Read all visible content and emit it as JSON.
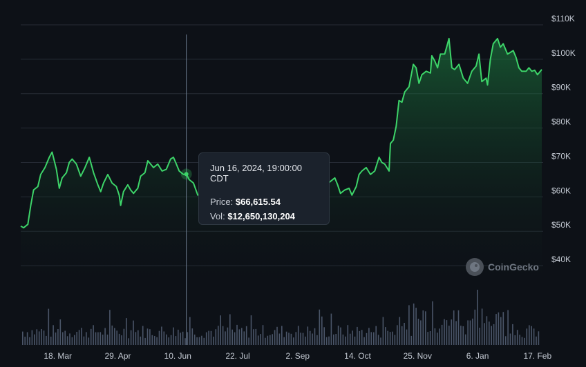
{
  "chart_data": {
    "type": "area",
    "y_unit_prefix": "$",
    "ylim": [
      35000,
      112000
    ],
    "yticks": [
      "$110K",
      "$100K",
      "$90K",
      "$80K",
      "$70K",
      "$60K",
      "$50K",
      "$40K"
    ],
    "ytick_values": [
      110000,
      100000,
      90000,
      80000,
      70000,
      60000,
      50000,
      40000
    ],
    "xticks": [
      "18. Mar",
      "29. Apr",
      "10. Jun",
      "22. Jul",
      "2. Sep",
      "14. Oct",
      "25. Nov",
      "6. Jan",
      "17. Feb"
    ],
    "xtick_dates": [
      "2024-03-18",
      "2024-04-29",
      "2024-06-10",
      "2024-07-22",
      "2024-09-02",
      "2024-10-14",
      "2024-11-25",
      "2025-01-06",
      "2025-02-17"
    ],
    "x_range": [
      "2024-02-21",
      "2025-02-20"
    ],
    "grid": true,
    "line_color": "#3dd469",
    "series": [
      {
        "values": [
          [
            "2024-02-21",
            51500
          ],
          [
            "2024-02-23",
            51000
          ],
          [
            "2024-02-26",
            52000
          ],
          [
            "2024-02-28",
            57500
          ],
          [
            "2024-03-01",
            62000
          ],
          [
            "2024-03-04",
            63000
          ],
          [
            "2024-03-06",
            66500
          ],
          [
            "2024-03-09",
            68500
          ],
          [
            "2024-03-12",
            71500
          ],
          [
            "2024-03-14",
            73000
          ],
          [
            "2024-03-17",
            68000
          ],
          [
            "2024-03-19",
            62500
          ],
          [
            "2024-03-21",
            65500
          ],
          [
            "2024-03-24",
            67000
          ],
          [
            "2024-03-26",
            70000
          ],
          [
            "2024-03-28",
            71000
          ],
          [
            "2024-03-31",
            69500
          ],
          [
            "2024-04-03",
            66000
          ],
          [
            "2024-04-06",
            68500
          ],
          [
            "2024-04-09",
            71500
          ],
          [
            "2024-04-12",
            67000
          ],
          [
            "2024-04-15",
            63500
          ],
          [
            "2024-04-17",
            61500
          ],
          [
            "2024-04-19",
            64000
          ],
          [
            "2024-04-22",
            66500
          ],
          [
            "2024-04-25",
            64000
          ],
          [
            "2024-04-28",
            63000
          ],
          [
            "2024-04-30",
            60500
          ],
          [
            "2024-05-01",
            57500
          ],
          [
            "2024-05-03",
            61500
          ],
          [
            "2024-05-06",
            63500
          ],
          [
            "2024-05-08",
            62000
          ],
          [
            "2024-05-10",
            61000
          ],
          [
            "2024-05-13",
            62500
          ],
          [
            "2024-05-15",
            66000
          ],
          [
            "2024-05-18",
            67000
          ],
          [
            "2024-05-20",
            70500
          ],
          [
            "2024-05-22",
            69500
          ],
          [
            "2024-05-24",
            68500
          ],
          [
            "2024-05-27",
            69500
          ],
          [
            "2024-05-30",
            67500
          ],
          [
            "2024-06-02",
            68000
          ],
          [
            "2024-06-05",
            71000
          ],
          [
            "2024-06-07",
            71500
          ],
          [
            "2024-06-09",
            69500
          ],
          [
            "2024-06-11",
            67500
          ],
          [
            "2024-06-14",
            66500
          ],
          [
            "2024-06-16",
            66615.54
          ],
          [
            "2024-06-18",
            65000
          ],
          [
            "2024-06-21",
            64000
          ],
          [
            "2024-06-24",
            60500
          ],
          [
            "2024-06-27",
            61500
          ],
          [
            "2024-06-30",
            62500
          ],
          [
            "2024-07-03",
            60000
          ],
          [
            "2024-07-05",
            56500
          ],
          [
            "2024-07-08",
            56000
          ],
          [
            "2024-07-11",
            57500
          ],
          [
            "2024-07-14",
            60500
          ],
          [
            "2024-07-17",
            65000
          ],
          [
            "2024-07-20",
            67000
          ],
          [
            "2024-07-23",
            65500
          ],
          [
            "2024-07-26",
            68000
          ],
          [
            "2024-07-29",
            66500
          ],
          [
            "2024-08-01",
            64500
          ],
          [
            "2024-08-03",
            61000
          ],
          [
            "2024-08-05",
            54000
          ],
          [
            "2024-08-08",
            61500
          ],
          [
            "2024-08-11",
            59000
          ],
          [
            "2024-08-14",
            58500
          ],
          [
            "2024-08-17",
            59500
          ],
          [
            "2024-08-20",
            61000
          ],
          [
            "2024-08-23",
            64000
          ],
          [
            "2024-08-26",
            63000
          ],
          [
            "2024-08-29",
            59500
          ],
          [
            "2024-09-01",
            57500
          ],
          [
            "2024-09-04",
            56500
          ],
          [
            "2024-09-06",
            54000
          ],
          [
            "2024-09-08",
            54500
          ],
          [
            "2024-09-11",
            57500
          ],
          [
            "2024-09-14",
            60000
          ],
          [
            "2024-09-17",
            58500
          ],
          [
            "2024-09-19",
            62500
          ],
          [
            "2024-09-22",
            63500
          ],
          [
            "2024-09-25",
            64500
          ],
          [
            "2024-09-28",
            65500
          ],
          [
            "2024-09-30",
            63500
          ],
          [
            "2024-10-02",
            61000
          ],
          [
            "2024-10-05",
            62000
          ],
          [
            "2024-10-08",
            62500
          ],
          [
            "2024-10-10",
            60500
          ],
          [
            "2024-10-13",
            63000
          ],
          [
            "2024-10-15",
            66500
          ],
          [
            "2024-10-17",
            67500
          ],
          [
            "2024-10-20",
            68500
          ],
          [
            "2024-10-23",
            66500
          ],
          [
            "2024-10-26",
            67500
          ],
          [
            "2024-10-29",
            71500
          ],
          [
            "2024-10-31",
            70000
          ],
          [
            "2024-11-02",
            69500
          ],
          [
            "2024-11-05",
            67500
          ],
          [
            "2024-11-06",
            75500
          ],
          [
            "2024-11-08",
            76500
          ],
          [
            "2024-11-10",
            80500
          ],
          [
            "2024-11-12",
            88000
          ],
          [
            "2024-11-14",
            87500
          ],
          [
            "2024-11-16",
            90500
          ],
          [
            "2024-11-19",
            92000
          ],
          [
            "2024-11-22",
            98500
          ],
          [
            "2024-11-24",
            97500
          ],
          [
            "2024-11-26",
            93000
          ],
          [
            "2024-11-28",
            95500
          ],
          [
            "2024-12-01",
            96500
          ],
          [
            "2024-12-04",
            96000
          ],
          [
            "2024-12-05",
            101000
          ],
          [
            "2024-12-07",
            99500
          ],
          [
            "2024-12-09",
            97500
          ],
          [
            "2024-12-11",
            101500
          ],
          [
            "2024-12-14",
            101500
          ],
          [
            "2024-12-16",
            104500
          ],
          [
            "2024-12-17",
            106000
          ],
          [
            "2024-12-19",
            97500
          ],
          [
            "2024-12-21",
            97000
          ],
          [
            "2024-12-24",
            98500
          ],
          [
            "2024-12-27",
            94500
          ],
          [
            "2024-12-30",
            93000
          ],
          [
            "2025-01-02",
            96500
          ],
          [
            "2025-01-05",
            98000
          ],
          [
            "2025-01-07",
            101500
          ],
          [
            "2025-01-09",
            93500
          ],
          [
            "2025-01-12",
            94500
          ],
          [
            "2025-01-13",
            92500
          ],
          [
            "2025-01-15",
            100000
          ],
          [
            "2025-01-17",
            104500
          ],
          [
            "2025-01-20",
            106000
          ],
          [
            "2025-01-22",
            103500
          ],
          [
            "2025-01-24",
            104500
          ],
          [
            "2025-01-27",
            101500
          ],
          [
            "2025-01-29",
            102000
          ],
          [
            "2025-01-31",
            102500
          ],
          [
            "2025-02-02",
            100500
          ],
          [
            "2025-02-04",
            97500
          ],
          [
            "2025-02-06",
            96500
          ],
          [
            "2025-02-09",
            96500
          ],
          [
            "2025-02-11",
            97500
          ],
          [
            "2025-02-13",
            96500
          ],
          [
            "2025-02-15",
            96800
          ],
          [
            "2025-02-17",
            95500
          ],
          [
            "2025-02-20",
            97000
          ]
        ]
      }
    ],
    "volume_bars_count": 220,
    "hover": {
      "date": "2024-06-16",
      "date_text": "Jun 16, 2024, 19:00:00 CDT",
      "price_label": "Price:",
      "price_value": "$66,615.54",
      "vol_label": "Vol:",
      "vol_value": "$12,650,130,204"
    }
  },
  "watermark": {
    "text": "CoinGecko",
    "icon": "coingecko-logo-icon"
  },
  "colors": {
    "background": "#0d1117",
    "line": "#3dd469",
    "grid": "#262c36",
    "volume": "#4a5568",
    "crosshair": "#6b7a8d"
  }
}
